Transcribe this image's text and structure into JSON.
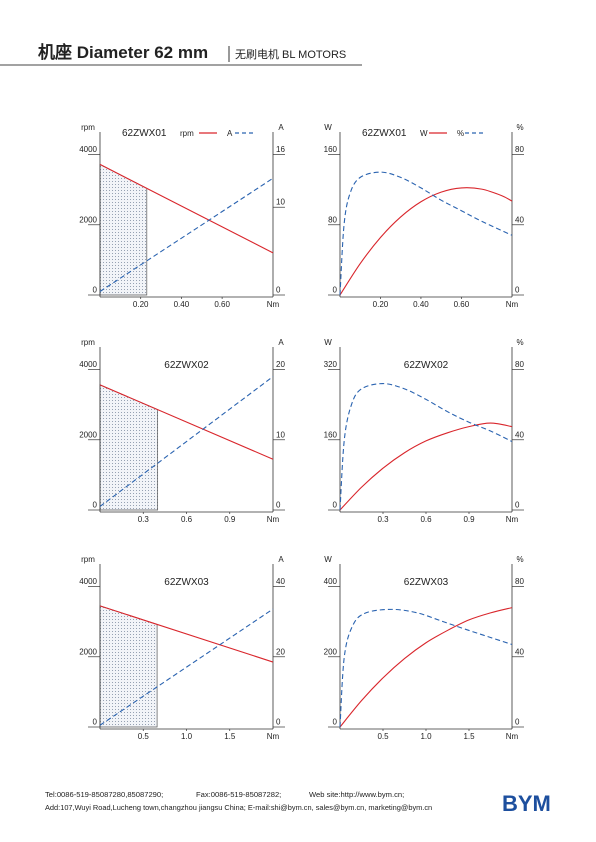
{
  "header": {
    "title": "机座 Diameter 62 mm",
    "subtitle": "无刷电机 BL MOTORS"
  },
  "chart_data": [
    {
      "type": "line",
      "title": "62ZWX01",
      "legend": true,
      "xlabel": "Nm",
      "ylabel": "rpm",
      "y2label": "A",
      "xlim": [
        0,
        0.85
      ],
      "xticks": [
        {
          "value": 0.2,
          "label": "0.20"
        },
        {
          "value": 0.4,
          "label": "0.40"
        },
        {
          "value": 0.6,
          "label": "0.60"
        }
      ],
      "ylim": [
        0,
        4500
      ],
      "yticks": [
        0,
        2000,
        4000
      ],
      "y2lim": [
        0,
        18
      ],
      "y2ticks": [
        0,
        10,
        16
      ],
      "rated_torque": 0.23,
      "series": [
        {
          "name": "rpm",
          "color": "#d9262c",
          "style": "solid",
          "x": [
            0,
            0.85
          ],
          "values": [
            3720,
            1200
          ]
        },
        {
          "name": "A",
          "color": "#2a63b0",
          "style": "dashed",
          "axis": "y2",
          "x": [
            0,
            0.85
          ],
          "values": [
            0.4,
            13.3
          ]
        }
      ]
    },
    {
      "type": "line",
      "title": "62ZWX01",
      "legend": true,
      "xlabel": "Nm",
      "ylabel": "W",
      "y2label": "%",
      "xlim": [
        0,
        0.85
      ],
      "xticks": [
        {
          "value": 0.2,
          "label": "0.20"
        },
        {
          "value": 0.4,
          "label": "0.40"
        },
        {
          "value": 0.6,
          "label": "0.60"
        }
      ],
      "ylim": [
        0,
        180
      ],
      "yticks": [
        0,
        80,
        160
      ],
      "y2lim": [
        0,
        90
      ],
      "y2ticks": [
        0,
        40,
        80
      ],
      "series": [
        {
          "name": "W",
          "color": "#d9262c",
          "style": "solid",
          "x": [
            0,
            0.1,
            0.2,
            0.3,
            0.4,
            0.5,
            0.6,
            0.7,
            0.8,
            0.85
          ],
          "values": [
            0,
            35.8,
            65.5,
            88.9,
            106.2,
            117.2,
            122,
            120.6,
            113.1,
            106.9
          ]
        },
        {
          "name": "%",
          "color": "#2a63b0",
          "style": "dashed",
          "axis": "y2",
          "x": [
            0,
            0.02,
            0.05,
            0.1,
            0.2,
            0.3,
            0.4,
            0.5,
            0.6,
            0.7,
            0.85
          ],
          "values": [
            0,
            40,
            58,
            67,
            70,
            67,
            61,
            54,
            48,
            42,
            34
          ]
        }
      ]
    },
    {
      "type": "line",
      "title": "62ZWX02",
      "legend": false,
      "xlabel": "Nm",
      "ylabel": "rpm",
      "y2label": "A",
      "xlim": [
        0,
        1.2
      ],
      "xticks": [
        0.3,
        0.6,
        0.9
      ],
      "ylim": [
        0,
        4500
      ],
      "yticks": [
        0,
        2000,
        4000
      ],
      "y2lim": [
        0,
        22.5
      ],
      "y2ticks": [
        0,
        10,
        20
      ],
      "rated_torque": 0.4,
      "series": [
        {
          "name": "rpm",
          "color": "#d9262c",
          "style": "solid",
          "x": [
            0,
            1.2
          ],
          "values": [
            3565,
            1445
          ]
        },
        {
          "name": "A",
          "color": "#2a63b0",
          "style": "dashed",
          "axis": "y2",
          "x": [
            0,
            1.2
          ],
          "values": [
            0.5,
            19
          ]
        }
      ]
    },
    {
      "type": "line",
      "title": "62ZWX02",
      "legend": false,
      "xlabel": "Nm",
      "ylabel": "W",
      "y2label": "%",
      "xlim": [
        0,
        1.2
      ],
      "xticks": [
        0.3,
        0.6,
        0.9
      ],
      "ylim": [
        0,
        360
      ],
      "yticks": [
        0,
        160,
        320
      ],
      "y2lim": [
        0,
        90
      ],
      "y2ticks": [
        0,
        40,
        80
      ],
      "series": [
        {
          "name": "W",
          "color": "#d9262c",
          "style": "solid",
          "x": [
            0,
            0.15,
            0.3,
            0.45,
            0.6,
            0.75,
            0.9,
            1.05,
            1.2
          ],
          "values": [
            0,
            51.8,
            95.3,
            130.5,
            157.4,
            175.9,
            190,
            198,
            190
          ]
        },
        {
          "name": "%",
          "color": "#2a63b0",
          "style": "dashed",
          "axis": "y2",
          "x": [
            0,
            0.03,
            0.08,
            0.15,
            0.3,
            0.45,
            0.6,
            0.75,
            0.9,
            1.05,
            1.2
          ],
          "values": [
            0,
            40,
            60,
            69,
            72,
            69,
            63,
            56,
            50,
            45,
            39
          ]
        }
      ]
    },
    {
      "type": "line",
      "title": "62ZWX03",
      "legend": false,
      "xlabel": "Nm",
      "ylabel": "rpm",
      "y2label": "A",
      "xlim": [
        0,
        2.0
      ],
      "xticks": [
        0.5,
        {
          "value": 1,
          "label": "1.0"
        },
        1.5
      ],
      "ylim": [
        0,
        4500
      ],
      "yticks": [
        0,
        2000,
        4000
      ],
      "y2lim": [
        0,
        45
      ],
      "y2ticks": [
        0,
        20,
        40
      ],
      "rated_torque": 0.66,
      "series": [
        {
          "name": "rpm",
          "color": "#d9262c",
          "style": "solid",
          "x": [
            0,
            2.0
          ],
          "values": [
            3450,
            1850
          ]
        },
        {
          "name": "A",
          "color": "#2a63b0",
          "style": "dashed",
          "axis": "y2",
          "x": [
            0,
            2.0
          ],
          "values": [
            0.5,
            33.6
          ]
        }
      ]
    },
    {
      "type": "line",
      "title": "62ZWX03",
      "legend": false,
      "xlabel": "Nm",
      "ylabel": "W",
      "y2label": "%",
      "xlim": [
        0,
        2.0
      ],
      "xticks": [
        0.5,
        {
          "value": 1,
          "label": "1.0"
        },
        1.5
      ],
      "ylim": [
        0,
        450
      ],
      "yticks": [
        0,
        200,
        400
      ],
      "y2lim": [
        0,
        90
      ],
      "y2ticks": [
        0,
        40,
        80
      ],
      "series": [
        {
          "name": "W",
          "color": "#d9262c",
          "style": "solid",
          "x": [
            0,
            0.25,
            0.5,
            0.75,
            1.0,
            1.25,
            1.5,
            1.75,
            2.0
          ],
          "values": [
            0,
            75,
            140,
            195,
            240,
            275,
            305,
            325,
            340
          ]
        },
        {
          "name": "%",
          "color": "#2a63b0",
          "style": "dashed",
          "axis": "y2",
          "x": [
            0,
            0.05,
            0.15,
            0.3,
            0.6,
            0.9,
            1.2,
            1.5,
            1.75,
            2.0
          ],
          "values": [
            0,
            40,
            58,
            65,
            67,
            65,
            60,
            55,
            51,
            47
          ]
        }
      ]
    }
  ],
  "footer": {
    "tel": "Tel:0086-519-85087280,85087290;",
    "fax": "Fax:0086-519-85087282;",
    "web": "Web site:http://www.bym.cn;",
    "address": "Add:107,Wuyi Road,Lucheng town,changzhou jiangsu China;  E-mail:shi@bym.cn, sales@bym.cn, marketing@bym.cn",
    "logo": "BYM"
  }
}
